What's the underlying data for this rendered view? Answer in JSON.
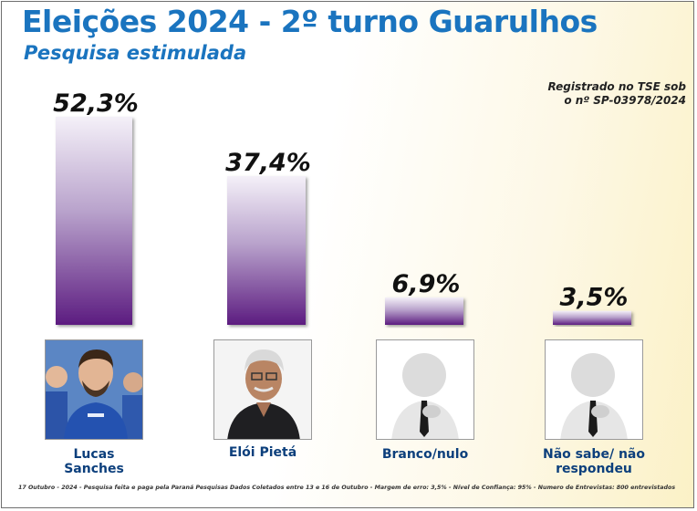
{
  "header": {
    "title": "Eleições 2024 - 2º turno Guarulhos",
    "subtitle": "Pesquisa estimulada"
  },
  "registration": {
    "line1": "Registrado no TSE sob",
    "line2": "o nº SP-03978/2024"
  },
  "chart_data": {
    "type": "bar",
    "title": "Eleições 2024 - 2º turno Guarulhos",
    "subtitle": "Pesquisa estimulada",
    "categories": [
      "Lucas Sanches",
      "Elói Pietá",
      "Branco/nulo",
      "Não sabe/ não respondeu"
    ],
    "category_labels": [
      "Lucas\nSanches",
      "Elói Pietá",
      "Branco/nulo",
      "Não sabe/ não\nrespondeu"
    ],
    "values": [
      52.3,
      37.4,
      6.9,
      3.5
    ],
    "value_labels": [
      "52,3%",
      "37,4%",
      "6,9%",
      "3,5%"
    ],
    "unit": "%",
    "ylim": [
      0,
      52.3
    ],
    "grid": false,
    "legend": "none",
    "bar_color_top": "#f4f0f8",
    "bar_color_bottom": "#5c1c80"
  },
  "footnote": "17 Outubro - 2024 - Pesquisa feita e paga pela Paraná Pesquisas Dados Coletados entre 13 e 16 de Outubro - Margem de erro: 3,5% - Nível de Confiança: 95% - Numero de Entrevistas: 800 entrevistados"
}
